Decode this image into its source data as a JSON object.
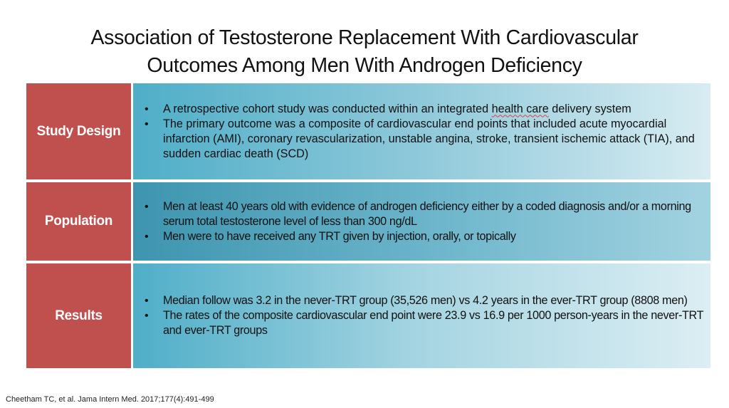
{
  "slide": {
    "title_line1": "Association of Testosterone Replacement With Cardiovascular",
    "title_line2": "Outcomes Among Men With Androgen Deficiency",
    "colors": {
      "label_background": "#C0504D",
      "content_gradient_start": "#4BACC6",
      "content_gradient_end": "#DAEEF3"
    },
    "rows": [
      {
        "label": "Study Design",
        "bullets": [
          {
            "pre": "A retrospective cohort study was conducted within an integrated ",
            "flagged": "health care",
            "post": " delivery system"
          },
          {
            "text": "The primary outcome was a composite of cardiovascular end points that included acute myocardial infarction (AMI), coronary revascularization, unstable angina, stroke, transient ischemic attack (TIA), and sudden cardiac death (SCD)"
          }
        ]
      },
      {
        "label": "Population",
        "bullets": [
          {
            "text": "Men at least 40 years old with evidence of androgen deficiency either by a coded diagnosis and/or a morning serum total testosterone level of less than 300 ng/dL"
          },
          {
            "text": "Men were to have received any TRT given by injection, orally, or topically"
          }
        ]
      },
      {
        "label": "Results",
        "bullets": [
          {
            "text": "Median follow was 3.2 in the never-TRT group (35,526 men) vs 4.2 years in the ever-TRT group (8808 men)"
          },
          {
            "text": "The rates of the composite cardiovascular end point were 23.9 vs 16.9 per 1000 person-years in the never-TRT and ever-TRT groups"
          }
        ]
      }
    ],
    "citation": "Cheetham TC, et al. Jama Intern Med. 2017;177(4):491-499"
  }
}
